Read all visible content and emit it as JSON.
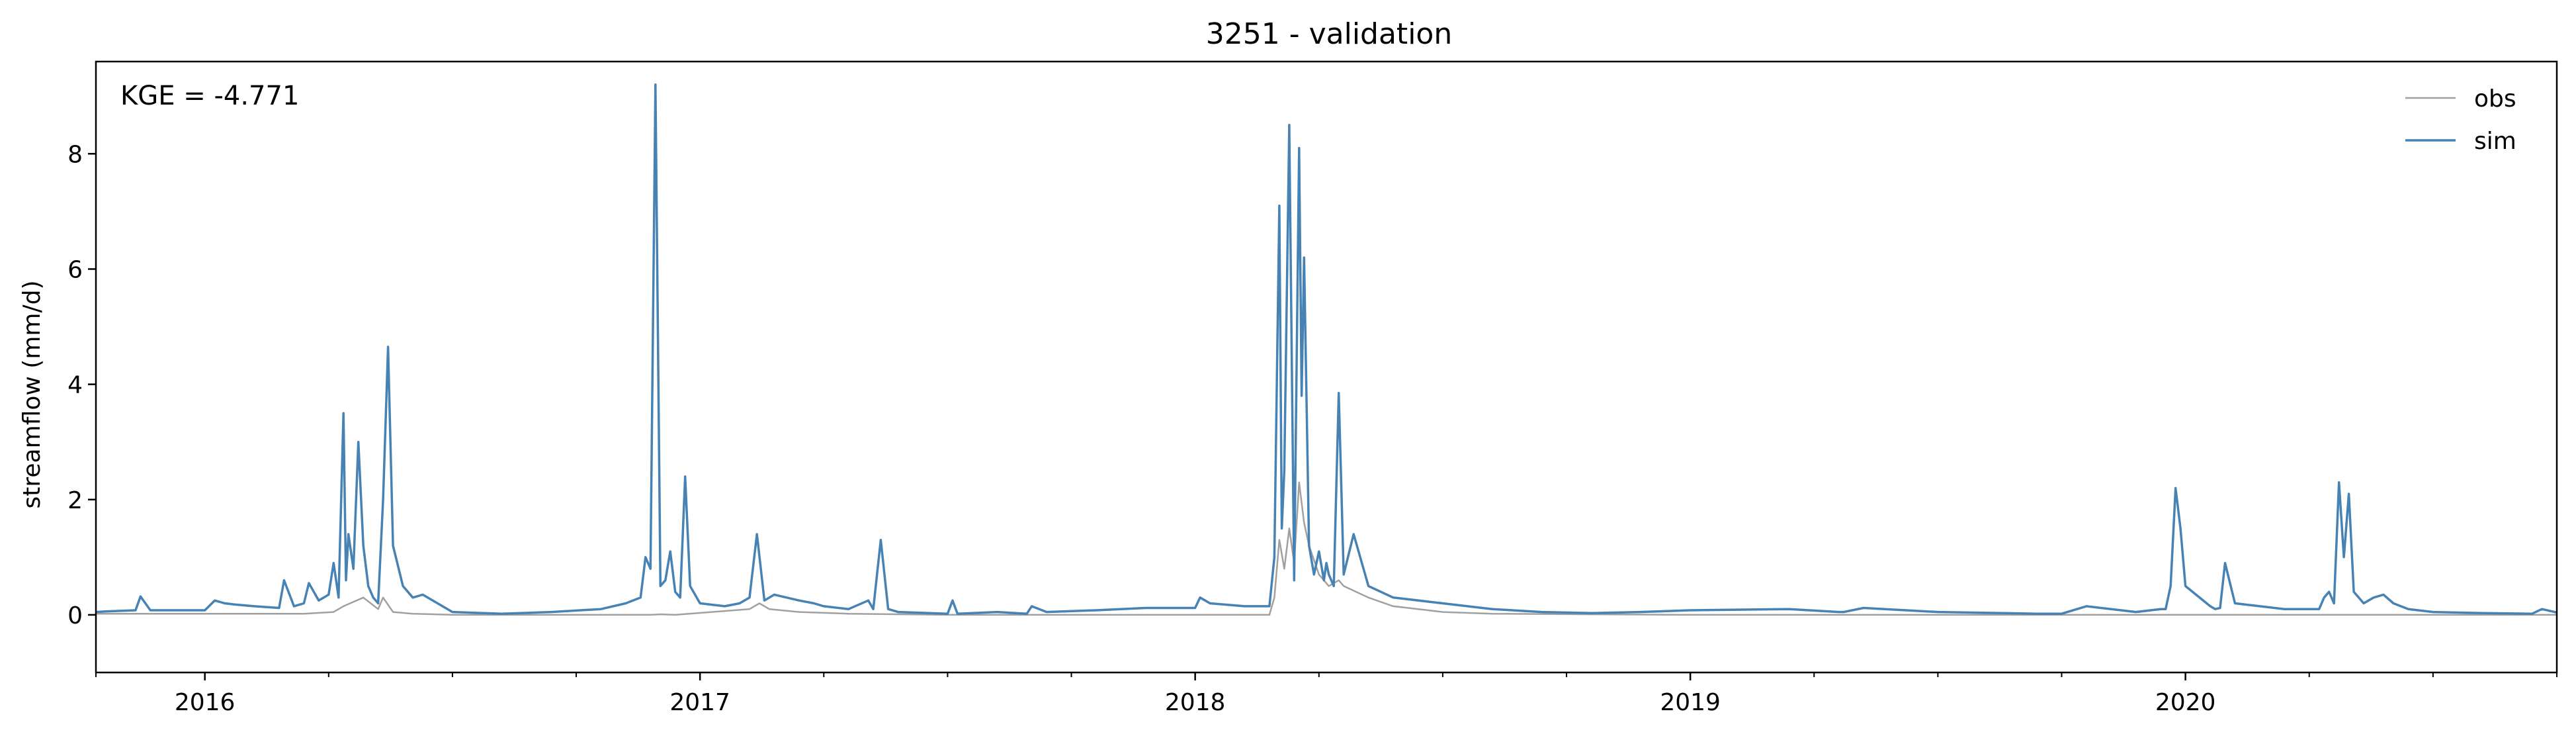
{
  "chart_data": {
    "type": "line",
    "title": "3251 - validation",
    "xlabel": "",
    "ylabel": "streamflow (mm/d)",
    "xlim": [
      2015.78,
      2020.75
    ],
    "ylim": [
      -1.0,
      9.6
    ],
    "x_tick_labels": [
      {
        "x": 2016,
        "label": "2016"
      },
      {
        "x": 2017,
        "label": "2017"
      },
      {
        "x": 2018,
        "label": "2018"
      },
      {
        "x": 2019,
        "label": "2019"
      },
      {
        "x": 2020,
        "label": "2020"
      }
    ],
    "x_minor_ticks": [
      2015.78,
      2016.25,
      2016.5,
      2016.75,
      2017.25,
      2017.5,
      2017.75,
      2018.25,
      2018.5,
      2018.75,
      2019.25,
      2019.5,
      2019.75,
      2020.25,
      2020.5,
      2020.75
    ],
    "y_ticks": [
      0,
      2,
      4,
      6,
      8
    ],
    "grid": false,
    "legend": {
      "placement": "top-right",
      "frame": false
    },
    "annotation": "KGE = -4.771",
    "series": [
      {
        "name": "obs",
        "color": "#a0a0a0",
        "x": [
          2015.78,
          2016.0,
          2016.2,
          2016.26,
          2016.28,
          2016.32,
          2016.35,
          2016.36,
          2016.38,
          2016.42,
          2016.5,
          2016.8,
          2016.9,
          2016.92,
          2016.95,
          2017.1,
          2017.12,
          2017.14,
          2017.2,
          2017.3,
          2017.5,
          2017.7,
          2018.0,
          2018.15,
          2018.16,
          2018.17,
          2018.18,
          2018.19,
          2018.2,
          2018.21,
          2018.22,
          2018.23,
          2018.25,
          2018.27,
          2018.29,
          2018.3,
          2018.35,
          2018.4,
          2018.5,
          2018.6,
          2018.8,
          2019.0,
          2019.3,
          2019.6,
          2019.9,
          2020.0,
          2020.3,
          2020.5,
          2020.75
        ],
        "y": [
          0.02,
          0.02,
          0.02,
          0.05,
          0.15,
          0.3,
          0.1,
          0.3,
          0.05,
          0.02,
          0.0,
          0.0,
          0.0,
          0.01,
          0.0,
          0.1,
          0.2,
          0.1,
          0.05,
          0.02,
          0.0,
          0.0,
          0.0,
          0.0,
          0.3,
          1.3,
          0.8,
          1.5,
          0.9,
          2.3,
          1.6,
          1.2,
          0.7,
          0.5,
          0.6,
          0.5,
          0.3,
          0.15,
          0.05,
          0.02,
          0.01,
          0.0,
          0.0,
          0.0,
          0.0,
          0.0,
          0.0,
          0.0,
          0.0
        ]
      },
      {
        "name": "sim",
        "color": "#4682b4",
        "x": [
          2015.78,
          2015.8,
          2015.86,
          2015.87,
          2015.89,
          2016.0,
          2016.02,
          2016.04,
          2016.06,
          2016.1,
          2016.15,
          2016.16,
          2016.18,
          2016.2,
          2016.21,
          2016.23,
          2016.25,
          2016.26,
          2016.27,
          2016.28,
          2016.285,
          2016.29,
          2016.3,
          2016.31,
          2016.32,
          2016.33,
          2016.34,
          2016.35,
          2016.36,
          2016.37,
          2016.38,
          2016.4,
          2016.42,
          2016.44,
          2016.5,
          2016.6,
          2016.7,
          2016.8,
          2016.85,
          2016.88,
          2016.89,
          2016.9,
          2016.91,
          2016.92,
          2016.93,
          2016.94,
          2016.95,
          2016.96,
          2016.97,
          2016.98,
          2017.0,
          2017.05,
          2017.08,
          2017.1,
          2017.115,
          2017.13,
          2017.15,
          2017.2,
          2017.23,
          2017.25,
          2017.3,
          2017.34,
          2017.35,
          2017.365,
          2017.38,
          2017.4,
          2017.5,
          2017.51,
          2017.52,
          2017.6,
          2017.66,
          2017.67,
          2017.7,
          2017.8,
          2017.9,
          2018.0,
          2018.01,
          2018.03,
          2018.1,
          2018.15,
          2018.16,
          2018.17,
          2018.175,
          2018.18,
          2018.19,
          2018.2,
          2018.21,
          2018.215,
          2018.22,
          2018.23,
          2018.24,
          2018.25,
          2018.26,
          2018.265,
          2018.27,
          2018.28,
          2018.29,
          2018.3,
          2018.32,
          2018.35,
          2018.4,
          2018.5,
          2018.6,
          2018.7,
          2018.8,
          2018.9,
          2019.0,
          2019.2,
          2019.3,
          2019.31,
          2019.35,
          2019.5,
          2019.7,
          2019.75,
          2019.8,
          2019.9,
          2019.95,
          2019.96,
          2019.97,
          2019.98,
          2019.99,
          2020.0,
          2020.05,
          2020.06,
          2020.07,
          2020.08,
          2020.1,
          2020.2,
          2020.25,
          2020.27,
          2020.28,
          2020.29,
          2020.3,
          2020.31,
          2020.32,
          2020.33,
          2020.34,
          2020.36,
          2020.38,
          2020.4,
          2020.42,
          2020.45,
          2020.5,
          2020.6,
          2020.7,
          2020.72,
          2020.75
        ],
        "y": [
          0.05,
          0.06,
          0.08,
          0.32,
          0.08,
          0.08,
          0.25,
          0.2,
          0.18,
          0.15,
          0.12,
          0.6,
          0.15,
          0.2,
          0.55,
          0.25,
          0.35,
          0.9,
          0.3,
          3.5,
          0.6,
          1.4,
          0.8,
          3.0,
          1.2,
          0.5,
          0.3,
          0.2,
          2.0,
          4.65,
          1.2,
          0.5,
          0.3,
          0.35,
          0.05,
          0.02,
          0.05,
          0.1,
          0.2,
          0.3,
          1.0,
          0.8,
          9.2,
          0.5,
          0.6,
          1.1,
          0.4,
          0.3,
          2.4,
          0.5,
          0.2,
          0.15,
          0.2,
          0.3,
          1.4,
          0.25,
          0.35,
          0.25,
          0.2,
          0.15,
          0.1,
          0.25,
          0.1,
          1.3,
          0.1,
          0.05,
          0.02,
          0.25,
          0.02,
          0.05,
          0.02,
          0.15,
          0.05,
          0.08,
          0.12,
          0.12,
          0.3,
          0.2,
          0.15,
          0.15,
          1.0,
          7.1,
          1.5,
          2.5,
          8.5,
          0.6,
          8.1,
          3.8,
          6.2,
          1.2,
          0.7,
          1.1,
          0.6,
          0.9,
          0.7,
          0.5,
          3.85,
          0.7,
          1.4,
          0.5,
          0.3,
          0.2,
          0.1,
          0.05,
          0.03,
          0.05,
          0.08,
          0.1,
          0.05,
          0.05,
          0.12,
          0.05,
          0.02,
          0.02,
          0.15,
          0.05,
          0.1,
          0.1,
          0.5,
          2.2,
          1.5,
          0.5,
          0.15,
          0.1,
          0.12,
          0.9,
          0.2,
          0.1,
          0.1,
          0.1,
          0.3,
          0.4,
          0.2,
          2.3,
          1.0,
          2.1,
          0.4,
          0.2,
          0.3,
          0.35,
          0.2,
          0.1,
          0.05,
          0.03,
          0.02,
          0.1,
          0.04
        ]
      }
    ]
  }
}
